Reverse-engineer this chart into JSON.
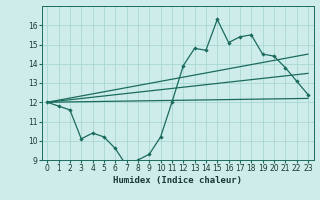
{
  "xlabel": "Humidex (Indice chaleur)",
  "ylabel": "",
  "background_color": "#ceecea",
  "grid_color": "#aad8d4",
  "line_color": "#1a6b5e",
  "xlim": [
    -0.5,
    23.5
  ],
  "ylim": [
    9,
    17
  ],
  "yticks": [
    9,
    10,
    11,
    12,
    13,
    14,
    15,
    16
  ],
  "xticks": [
    0,
    1,
    2,
    3,
    4,
    5,
    6,
    7,
    8,
    9,
    10,
    11,
    12,
    13,
    14,
    15,
    16,
    17,
    18,
    19,
    20,
    21,
    22,
    23
  ],
  "main_line_x": [
    0,
    1,
    2,
    3,
    4,
    5,
    6,
    7,
    8,
    9,
    10,
    11,
    12,
    13,
    14,
    15,
    16,
    17,
    18,
    19,
    20,
    21,
    22,
    23
  ],
  "main_line_y": [
    12.0,
    11.8,
    11.6,
    10.1,
    10.4,
    10.2,
    9.6,
    8.7,
    9.0,
    9.3,
    10.2,
    12.0,
    13.9,
    14.8,
    14.7,
    16.3,
    15.1,
    15.4,
    15.5,
    14.5,
    14.4,
    13.8,
    13.1,
    12.4
  ],
  "upper_line": [
    [
      0,
      12.0
    ],
    [
      23,
      14.5
    ]
  ],
  "mid_line": [
    [
      0,
      12.0
    ],
    [
      23,
      13.5
    ]
  ],
  "lower_line": [
    [
      0,
      12.0
    ],
    [
      23,
      12.2
    ]
  ]
}
